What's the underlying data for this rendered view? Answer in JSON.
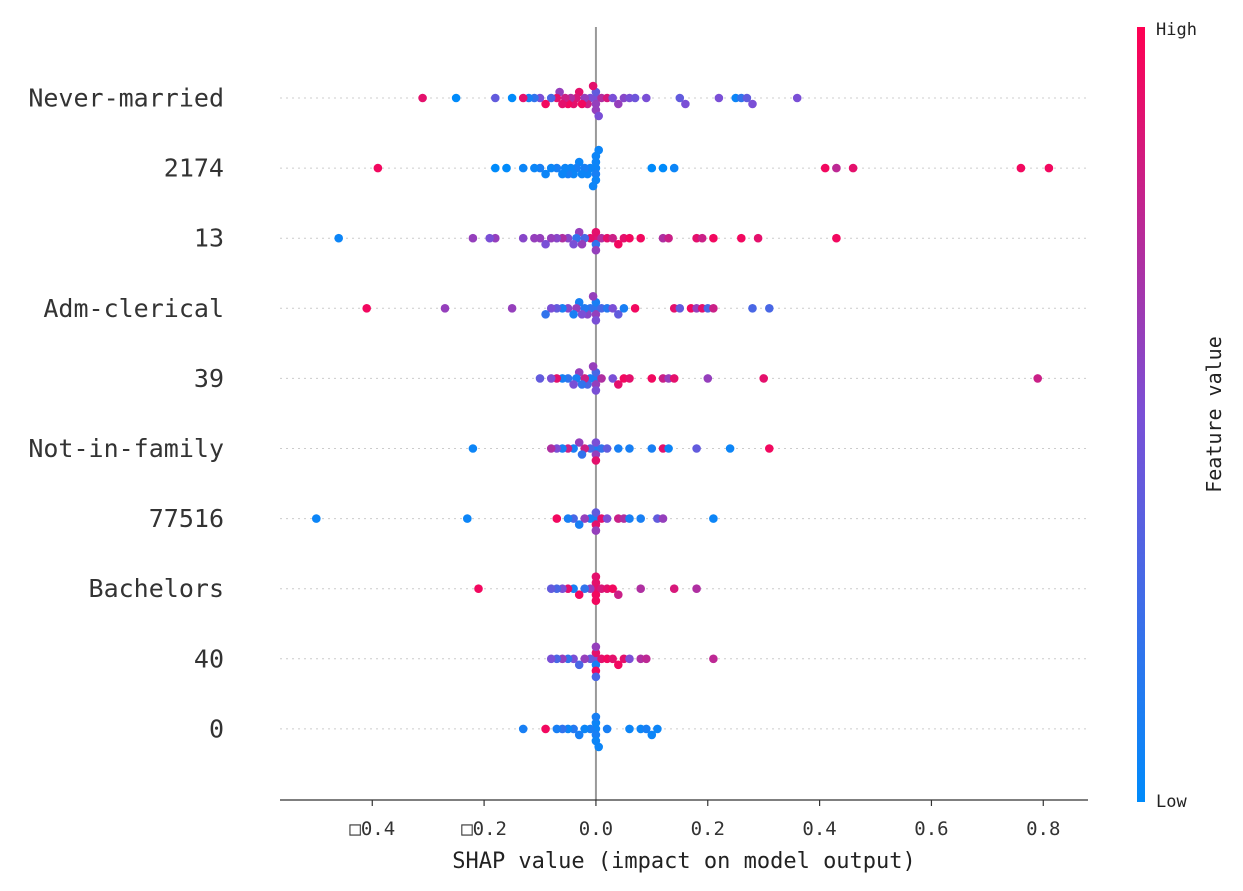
{
  "chart_data": {
    "type": "scatter",
    "subtype": "beeswarm",
    "xlabel": "SHAP value (impact on model output)",
    "x_ticks": [
      {
        "value": -0.4,
        "label": "□0.4"
      },
      {
        "value": -0.2,
        "label": "□0.2"
      },
      {
        "value": 0.0,
        "label": "0.0"
      },
      {
        "value": 0.2,
        "label": "0.2"
      },
      {
        "value": 0.4,
        "label": "0.4"
      },
      {
        "value": 0.6,
        "label": "0.6"
      },
      {
        "value": 0.8,
        "label": "0.8"
      }
    ],
    "xlim": [
      -0.565,
      0.88
    ],
    "zero_line": true,
    "row_gridlines": "dotted",
    "colorbar": {
      "title": "Feature value",
      "high_label": "High",
      "low_label": "Low",
      "high_color": "#ff0052",
      "mid_color": "#7a4fd6",
      "low_color": "#008bfb"
    },
    "features": [
      {
        "name": "Never-married",
        "points": [
          [
            -0.31,
            0.9
          ],
          [
            -0.25,
            0.0
          ],
          [
            -0.18,
            0.4
          ],
          [
            -0.15,
            0.0
          ],
          [
            -0.13,
            0.9
          ],
          [
            -0.12,
            0.1
          ],
          [
            -0.11,
            0.2
          ],
          [
            -0.1,
            0.5
          ],
          [
            -0.09,
            0.95
          ],
          [
            -0.08,
            0.3
          ],
          [
            -0.07,
            0.9
          ],
          [
            -0.065,
            0.6
          ],
          [
            -0.06,
            0.9
          ],
          [
            -0.055,
            0.8
          ],
          [
            -0.05,
            0.95
          ],
          [
            -0.045,
            0.7
          ],
          [
            -0.04,
            0.9
          ],
          [
            -0.035,
            0.85
          ],
          [
            -0.03,
            0.9
          ],
          [
            -0.025,
            0.95
          ],
          [
            -0.02,
            0.6
          ],
          [
            -0.015,
            0.8
          ],
          [
            -0.01,
            0.5
          ],
          [
            -0.005,
            0.9
          ],
          [
            0.0,
            0.5
          ],
          [
            0.0,
            0.6
          ],
          [
            0.0,
            0.4
          ],
          [
            0.0,
            0.6
          ],
          [
            0.005,
            0.5
          ],
          [
            0.01,
            0.7
          ],
          [
            0.02,
            0.85
          ],
          [
            0.03,
            0.5
          ],
          [
            0.04,
            0.6
          ],
          [
            0.05,
            0.55
          ],
          [
            0.06,
            0.5
          ],
          [
            0.07,
            0.45
          ],
          [
            0.09,
            0.5
          ],
          [
            0.15,
            0.4
          ],
          [
            0.16,
            0.5
          ],
          [
            0.22,
            0.5
          ],
          [
            0.25,
            0.05
          ],
          [
            0.26,
            0.2
          ],
          [
            0.27,
            0.4
          ],
          [
            0.28,
            0.5
          ],
          [
            0.36,
            0.5
          ]
        ]
      },
      {
        "name": "2174",
        "points": [
          [
            -0.39,
            0.95
          ],
          [
            -0.18,
            0.0
          ],
          [
            -0.16,
            0.0
          ],
          [
            -0.13,
            0.05
          ],
          [
            -0.11,
            0.05
          ],
          [
            -0.1,
            0.1
          ],
          [
            -0.09,
            0.05
          ],
          [
            -0.08,
            0.05
          ],
          [
            -0.07,
            0.1
          ],
          [
            -0.06,
            0.05
          ],
          [
            -0.055,
            0.05
          ],
          [
            -0.05,
            0.1
          ],
          [
            -0.045,
            0.05
          ],
          [
            -0.04,
            0.05
          ],
          [
            -0.035,
            0.1
          ],
          [
            -0.03,
            0.05
          ],
          [
            -0.025,
            0.05
          ],
          [
            -0.02,
            0.1
          ],
          [
            -0.015,
            0.05
          ],
          [
            -0.01,
            0.05
          ],
          [
            -0.005,
            0.05
          ],
          [
            0.0,
            0.05
          ],
          [
            0.0,
            0.1
          ],
          [
            0.0,
            0.05
          ],
          [
            0.0,
            0.05
          ],
          [
            0.0,
            0.05
          ],
          [
            0.005,
            0.05
          ],
          [
            0.1,
            0.0
          ],
          [
            0.12,
            0.0
          ],
          [
            0.14,
            0.05
          ],
          [
            0.41,
            0.95
          ],
          [
            0.43,
            0.75
          ],
          [
            0.46,
            0.9
          ],
          [
            0.76,
            0.95
          ],
          [
            0.81,
            0.95
          ]
        ]
      },
      {
        "name": "13",
        "points": [
          [
            -0.46,
            0.05
          ],
          [
            -0.22,
            0.6
          ],
          [
            -0.19,
            0.5
          ],
          [
            -0.18,
            0.6
          ],
          [
            -0.13,
            0.55
          ],
          [
            -0.11,
            0.6
          ],
          [
            -0.1,
            0.6
          ],
          [
            -0.09,
            0.5
          ],
          [
            -0.08,
            0.6
          ],
          [
            -0.07,
            0.55
          ],
          [
            -0.06,
            0.7
          ],
          [
            -0.05,
            0.55
          ],
          [
            -0.04,
            0.5
          ],
          [
            -0.035,
            0.2
          ],
          [
            -0.03,
            0.6
          ],
          [
            -0.025,
            0.6
          ],
          [
            -0.02,
            0.3
          ],
          [
            -0.01,
            0.9
          ],
          [
            0.0,
            0.85
          ],
          [
            0.0,
            0.2
          ],
          [
            0.0,
            0.9
          ],
          [
            0.0,
            0.6
          ],
          [
            0.01,
            0.7
          ],
          [
            0.02,
            0.9
          ],
          [
            0.03,
            0.8
          ],
          [
            0.04,
            0.95
          ],
          [
            0.05,
            0.9
          ],
          [
            0.06,
            0.95
          ],
          [
            0.08,
            0.95
          ],
          [
            0.12,
            0.7
          ],
          [
            0.13,
            0.8
          ],
          [
            0.18,
            0.9
          ],
          [
            0.19,
            0.8
          ],
          [
            0.21,
            0.95
          ],
          [
            0.26,
            0.95
          ],
          [
            0.29,
            0.9
          ],
          [
            0.43,
            0.95
          ]
        ]
      },
      {
        "name": "Adm-clerical",
        "points": [
          [
            -0.41,
            0.95
          ],
          [
            -0.27,
            0.6
          ],
          [
            -0.15,
            0.6
          ],
          [
            -0.09,
            0.2
          ],
          [
            -0.08,
            0.5
          ],
          [
            -0.07,
            0.4
          ],
          [
            -0.06,
            0.1
          ],
          [
            -0.05,
            0.55
          ],
          [
            -0.04,
            0.1
          ],
          [
            -0.035,
            0.6
          ],
          [
            -0.03,
            0.1
          ],
          [
            -0.025,
            0.5
          ],
          [
            -0.02,
            0.15
          ],
          [
            -0.015,
            0.55
          ],
          [
            -0.01,
            0.2
          ],
          [
            -0.005,
            0.6
          ],
          [
            0.0,
            0.2
          ],
          [
            0.0,
            0.6
          ],
          [
            0.0,
            0.1
          ],
          [
            0.0,
            0.5
          ],
          [
            0.01,
            0.3
          ],
          [
            0.02,
            0.15
          ],
          [
            0.03,
            0.5
          ],
          [
            0.04,
            0.4
          ],
          [
            0.05,
            0.1
          ],
          [
            0.07,
            0.95
          ],
          [
            0.14,
            0.9
          ],
          [
            0.15,
            0.4
          ],
          [
            0.17,
            0.95
          ],
          [
            0.18,
            0.6
          ],
          [
            0.19,
            0.9
          ],
          [
            0.2,
            0.3
          ],
          [
            0.21,
            0.8
          ],
          [
            0.28,
            0.3
          ],
          [
            0.31,
            0.3
          ]
        ]
      },
      {
        "name": "39",
        "points": [
          [
            -0.1,
            0.4
          ],
          [
            -0.08,
            0.5
          ],
          [
            -0.07,
            0.9
          ],
          [
            -0.06,
            0.1
          ],
          [
            -0.05,
            0.2
          ],
          [
            -0.04,
            0.5
          ],
          [
            -0.035,
            0.1
          ],
          [
            -0.03,
            0.6
          ],
          [
            -0.025,
            0.2
          ],
          [
            -0.02,
            0.8
          ],
          [
            -0.015,
            0.3
          ],
          [
            -0.01,
            0.1
          ],
          [
            -0.005,
            0.6
          ],
          [
            0.0,
            0.1
          ],
          [
            0.0,
            0.6
          ],
          [
            0.0,
            0.3
          ],
          [
            0.0,
            0.5
          ],
          [
            0.01,
            0.7
          ],
          [
            0.03,
            0.5
          ],
          [
            0.04,
            0.9
          ],
          [
            0.05,
            0.95
          ],
          [
            0.06,
            0.9
          ],
          [
            0.1,
            0.95
          ],
          [
            0.12,
            0.8
          ],
          [
            0.13,
            0.6
          ],
          [
            0.14,
            0.9
          ],
          [
            0.2,
            0.6
          ],
          [
            0.3,
            0.9
          ],
          [
            0.79,
            0.8
          ]
        ]
      },
      {
        "name": "Not-in-family",
        "points": [
          [
            -0.22,
            0.05
          ],
          [
            -0.08,
            0.7
          ],
          [
            -0.07,
            0.5
          ],
          [
            -0.06,
            0.1
          ],
          [
            -0.05,
            0.8
          ],
          [
            -0.04,
            0.1
          ],
          [
            -0.03,
            0.6
          ],
          [
            -0.025,
            0.2
          ],
          [
            -0.02,
            0.8
          ],
          [
            -0.01,
            0.3
          ],
          [
            0.0,
            0.1
          ],
          [
            0.0,
            0.6
          ],
          [
            0.0,
            0.5
          ],
          [
            0.0,
            0.9
          ],
          [
            0.01,
            0.2
          ],
          [
            0.02,
            0.4
          ],
          [
            0.04,
            0.1
          ],
          [
            0.06,
            0.1
          ],
          [
            0.1,
            0.1
          ],
          [
            0.12,
            0.9
          ],
          [
            0.13,
            0.05
          ],
          [
            0.18,
            0.4
          ],
          [
            0.24,
            0.05
          ],
          [
            0.31,
            0.95
          ]
        ]
      },
      {
        "name": "77516",
        "points": [
          [
            -0.5,
            0.05
          ],
          [
            -0.23,
            0.05
          ],
          [
            -0.07,
            0.95
          ],
          [
            -0.05,
            0.1
          ],
          [
            -0.04,
            0.3
          ],
          [
            -0.03,
            0.1
          ],
          [
            -0.02,
            0.6
          ],
          [
            -0.01,
            0.1
          ],
          [
            0.0,
            0.1
          ],
          [
            0.0,
            0.9
          ],
          [
            0.0,
            0.4
          ],
          [
            0.0,
            0.6
          ],
          [
            0.01,
            0.9
          ],
          [
            0.02,
            0.5
          ],
          [
            0.04,
            0.8
          ],
          [
            0.05,
            0.7
          ],
          [
            0.06,
            0.1
          ],
          [
            0.08,
            0.1
          ],
          [
            0.11,
            0.4
          ],
          [
            0.12,
            0.6
          ],
          [
            0.21,
            0.05
          ]
        ]
      },
      {
        "name": "Bachelors",
        "points": [
          [
            -0.21,
            0.95
          ],
          [
            -0.08,
            0.4
          ],
          [
            -0.07,
            0.3
          ],
          [
            -0.06,
            0.5
          ],
          [
            -0.05,
            0.9
          ],
          [
            -0.04,
            0.1
          ],
          [
            -0.03,
            0.95
          ],
          [
            -0.02,
            0.2
          ],
          [
            -0.01,
            0.6
          ],
          [
            0.0,
            0.9
          ],
          [
            0.0,
            0.95
          ],
          [
            0.0,
            0.9
          ],
          [
            0.0,
            0.95
          ],
          [
            0.0,
            0.9
          ],
          [
            0.01,
            0.85
          ],
          [
            0.02,
            0.9
          ],
          [
            0.03,
            0.95
          ],
          [
            0.04,
            0.8
          ],
          [
            0.08,
            0.7
          ],
          [
            0.14,
            0.85
          ],
          [
            0.18,
            0.7
          ]
        ]
      },
      {
        "name": "40",
        "points": [
          [
            -0.08,
            0.5
          ],
          [
            -0.07,
            0.3
          ],
          [
            -0.06,
            0.6
          ],
          [
            -0.05,
            0.2
          ],
          [
            -0.04,
            0.5
          ],
          [
            -0.03,
            0.3
          ],
          [
            -0.02,
            0.6
          ],
          [
            -0.01,
            0.4
          ],
          [
            0.0,
            0.5
          ],
          [
            0.0,
            0.1
          ],
          [
            0.0,
            0.9
          ],
          [
            0.0,
            0.95
          ],
          [
            0.0,
            0.6
          ],
          [
            0.0,
            0.3
          ],
          [
            0.01,
            0.9
          ],
          [
            0.02,
            0.95
          ],
          [
            0.03,
            0.9
          ],
          [
            0.04,
            0.95
          ],
          [
            0.05,
            0.9
          ],
          [
            0.06,
            0.5
          ],
          [
            0.08,
            0.7
          ],
          [
            0.09,
            0.75
          ],
          [
            0.21,
            0.75
          ]
        ]
      },
      {
        "name": "0",
        "points": [
          [
            -0.13,
            0.1
          ],
          [
            -0.09,
            0.95
          ],
          [
            -0.07,
            0.1
          ],
          [
            -0.06,
            0.2
          ],
          [
            -0.05,
            0.05
          ],
          [
            -0.04,
            0.15
          ],
          [
            -0.03,
            0.1
          ],
          [
            -0.02,
            0.05
          ],
          [
            -0.01,
            0.1
          ],
          [
            0.0,
            0.05
          ],
          [
            0.0,
            0.1
          ],
          [
            0.0,
            0.05
          ],
          [
            0.0,
            0.05
          ],
          [
            0.0,
            0.1
          ],
          [
            0.005,
            0.05
          ],
          [
            0.02,
            0.1
          ],
          [
            0.06,
            0.05
          ],
          [
            0.08,
            0.05
          ],
          [
            0.09,
            0.1
          ],
          [
            0.1,
            0.05
          ],
          [
            0.11,
            0.05
          ]
        ]
      }
    ]
  }
}
